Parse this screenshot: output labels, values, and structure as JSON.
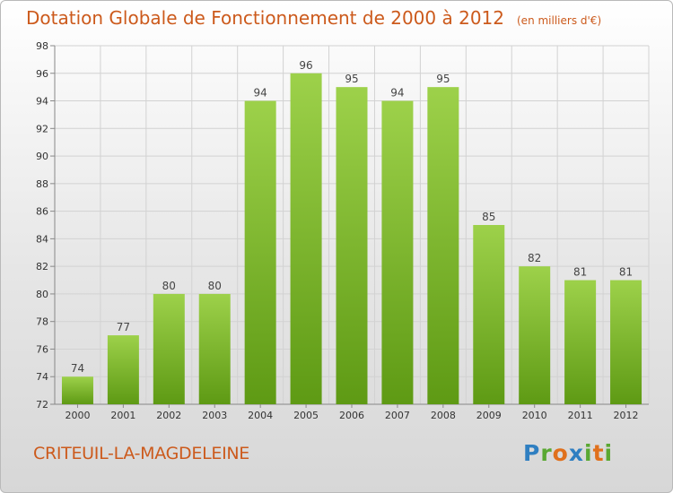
{
  "header": {
    "title": "Dotation Globale de Fonctionnement de 2000 à 2012",
    "unit": "(en milliers d'€)"
  },
  "footer": {
    "commune": "CRITEUIL-LA-MAGDELEINE",
    "logo_text": "Proxiti"
  },
  "colors": {
    "title": "#cc5a1c",
    "bar_top": "#9dd14a",
    "bar_bottom": "#5e9a14",
    "grid": "#d2d2d2"
  },
  "chart_data": {
    "type": "bar",
    "title": "Dotation Globale de Fonctionnement de 2000 à 2012",
    "subtitle": "(en milliers d'€)",
    "xlabel": "",
    "ylabel": "",
    "categories": [
      "2000",
      "2001",
      "2002",
      "2003",
      "2004",
      "2005",
      "2006",
      "2007",
      "2008",
      "2009",
      "2010",
      "2011",
      "2012"
    ],
    "values": [
      74,
      77,
      80,
      80,
      94,
      96,
      95,
      94,
      95,
      85,
      82,
      81,
      81
    ],
    "ylim": [
      72,
      98
    ],
    "yticks": [
      72,
      74,
      76,
      78,
      80,
      82,
      84,
      86,
      88,
      90,
      92,
      94,
      96,
      98
    ],
    "grid": true,
    "data_labels": true
  }
}
